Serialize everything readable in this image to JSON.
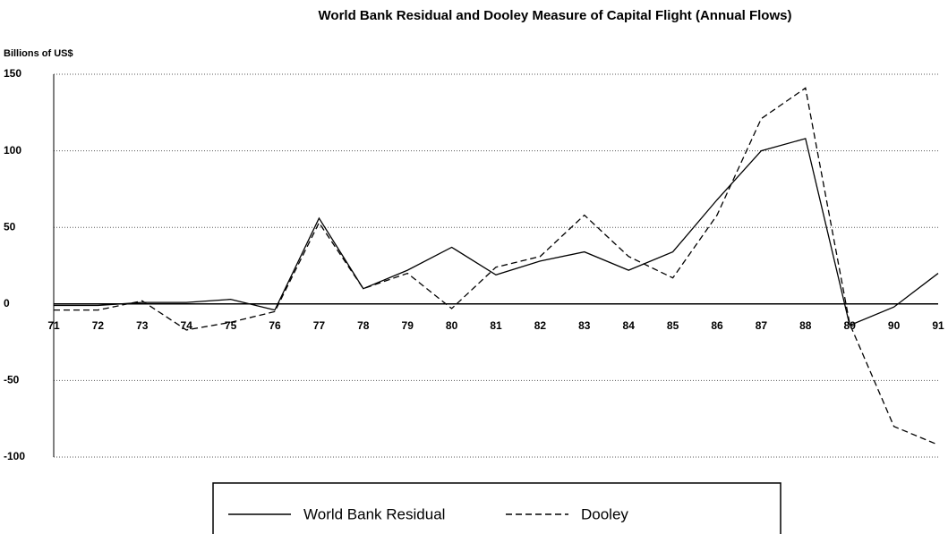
{
  "chart_data": {
    "type": "line",
    "title": "World Bank Residual and Dooley Measure of Capital Flight (Annual Flows)",
    "y_label": "Billions of US$",
    "categories": [
      "71",
      "72",
      "73",
      "74",
      "75",
      "76",
      "77",
      "78",
      "79",
      "80",
      "81",
      "82",
      "83",
      "84",
      "85",
      "86",
      "87",
      "88",
      "89",
      "90",
      "91"
    ],
    "series": [
      {
        "name": "World Bank Residual",
        "color": "#000000",
        "line_style": "solid",
        "values": [
          -1,
          -1,
          1,
          1,
          3,
          -4,
          56,
          10,
          22,
          37,
          19,
          28,
          34,
          22,
          34,
          68,
          100,
          108,
          -14,
          -2,
          20
        ]
      },
      {
        "name": "Dooley",
        "color": "#000000",
        "line_style": "dashed",
        "values": [
          -4,
          -4,
          2,
          -17,
          -12,
          -5,
          53,
          10,
          20,
          -3,
          24,
          31,
          58,
          31,
          17,
          58,
          121,
          141,
          -13,
          -80,
          -92
        ]
      }
    ],
    "ylim": [
      -100,
      150
    ],
    "yticks": [
      -100,
      -50,
      0,
      50,
      100,
      150
    ],
    "grid": true
  }
}
